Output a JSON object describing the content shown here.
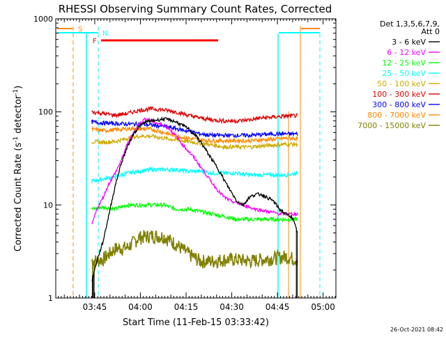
{
  "chart_data": {
    "type": "line",
    "title": "RHESSI Observing Summary Count Rates, Corrected",
    "xlabel": "Start Time (11-Feb-15 03:33:42)",
    "ylabel_main": "Corrected Count Rate (s",
    "ylabel_sup1": "-1",
    "ylabel_mid": " detector",
    "ylabel_sup2": "-1",
    "ylabel_end": ")",
    "ylim": [
      1,
      1000
    ],
    "yscale": "log",
    "yticks": [
      1,
      10,
      100,
      1000
    ],
    "ytick_labels": [
      "1",
      "10",
      "100",
      "1000"
    ],
    "x_unit": "minutes after 03:33:42",
    "xlim": [
      -1.5,
      90.5
    ],
    "xticks": [
      11.3,
      26.3,
      41.3,
      56.3,
      71.3,
      86.3
    ],
    "xtick_labels": [
      "03:45",
      "04:00",
      "04:15",
      "04:30",
      "04:45",
      "05:00"
    ],
    "legend_header": [
      "Det 1,3,5,6,7,9,",
      "Att 0"
    ],
    "legend_position": "right",
    "series": [
      {
        "name": "3 - 6 keV",
        "color": "#000000",
        "x": [
          10.3,
          12,
          14,
          16,
          18,
          20,
          22,
          24,
          26,
          28,
          30,
          32,
          34,
          36,
          38,
          40,
          42,
          44,
          46,
          48,
          50,
          52,
          54,
          56,
          58,
          60,
          62,
          64,
          66,
          68,
          70,
          72,
          74,
          76,
          78
        ],
        "y": [
          1.5,
          2.5,
          4,
          8,
          16,
          28,
          42,
          58,
          70,
          78,
          80,
          82,
          84,
          82,
          78,
          72,
          66,
          58,
          48,
          38,
          30,
          24,
          18,
          14,
          11,
          10,
          12,
          13,
          13,
          12,
          11,
          9,
          8,
          7.5,
          5
        ]
      },
      {
        "name": "6 - 12 keV",
        "color": "#ff00ff",
        "x": [
          10.3,
          12,
          14,
          16,
          18,
          20,
          22,
          24,
          26,
          28,
          30,
          32,
          34,
          36,
          38,
          40,
          42,
          44,
          46,
          48,
          50,
          52,
          54,
          56,
          58,
          60,
          62,
          64,
          66,
          68,
          70,
          72,
          74,
          76,
          78
        ],
        "y": [
          6,
          9,
          12,
          17,
          22,
          30,
          45,
          60,
          75,
          85,
          80,
          75,
          72,
          65,
          55,
          45,
          38,
          32,
          26,
          21,
          17,
          14,
          12,
          11,
          10.5,
          10,
          9.5,
          9,
          8.8,
          8.5,
          8.3,
          8,
          8,
          8,
          8
        ]
      },
      {
        "name": "12 - 25 keV",
        "color": "#00ff00",
        "x": [
          10.3,
          14,
          18,
          22,
          26,
          30,
          34,
          38,
          42,
          46,
          50,
          54,
          58,
          62,
          66,
          70,
          74,
          78
        ],
        "y": [
          9,
          9.5,
          9,
          10,
          10,
          10,
          10,
          9,
          9,
          8.5,
          8,
          7.5,
          7,
          7,
          7,
          7,
          7,
          7
        ]
      },
      {
        "name": "25 - 50 keV",
        "color": "#00ffff",
        "x": [
          10.3,
          14,
          18,
          22,
          26,
          30,
          34,
          38,
          42,
          46,
          50,
          54,
          58,
          62,
          66,
          70,
          74,
          78
        ],
        "y": [
          18,
          19,
          20,
          22,
          23,
          24,
          24,
          24,
          23,
          23,
          22,
          22,
          22,
          21,
          21,
          21,
          21,
          22
        ]
      },
      {
        "name": "50 - 100 keV",
        "color": "#ccaa00",
        "x": [
          10.3,
          14,
          18,
          22,
          26,
          30,
          34,
          38,
          42,
          46,
          50,
          54,
          58,
          62,
          66,
          70,
          74,
          78
        ],
        "y": [
          48,
          47,
          48,
          52,
          55,
          55,
          52,
          50,
          48,
          46,
          44,
          42,
          42,
          42,
          43,
          44,
          45,
          45
        ]
      },
      {
        "name": "100 - 300 keV",
        "color": "#dd0000",
        "x": [
          10.3,
          14,
          18,
          22,
          26,
          30,
          34,
          38,
          42,
          46,
          50,
          54,
          58,
          62,
          66,
          70,
          74,
          78
        ],
        "y": [
          100,
          96,
          92,
          96,
          104,
          108,
          105,
          100,
          92,
          86,
          82,
          80,
          80,
          82,
          86,
          88,
          90,
          91
        ]
      },
      {
        "name": "300 - 800 keV",
        "color": "#0000ff",
        "x": [
          10.3,
          14,
          18,
          22,
          26,
          30,
          34,
          38,
          42,
          46,
          50,
          54,
          58,
          62,
          66,
          70,
          74,
          78
        ],
        "y": [
          78,
          76,
          75,
          74,
          74,
          72,
          70,
          66,
          62,
          58,
          56,
          56,
          56,
          56,
          57,
          58,
          58,
          58
        ]
      },
      {
        "name": "800 - 7000 keV",
        "color": "#ff8800",
        "x": [
          10.3,
          14,
          18,
          22,
          26,
          30,
          34,
          38,
          42,
          46,
          50,
          54,
          58,
          62,
          66,
          70,
          74,
          78
        ],
        "y": [
          65,
          63,
          64,
          66,
          66,
          65,
          60,
          55,
          52,
          50,
          49,
          49,
          49,
          49,
          50,
          51,
          52,
          52
        ]
      },
      {
        "name": "7000 - 15000 keV",
        "color": "#808000",
        "x": [
          10.3,
          14,
          18,
          22,
          26,
          30,
          34,
          38,
          42,
          46,
          50,
          54,
          58,
          62,
          66,
          70,
          74,
          78
        ],
        "y": [
          2.5,
          2.6,
          3.4,
          3.5,
          4.5,
          4.7,
          4.6,
          3.8,
          3.0,
          2.5,
          2.5,
          2.6,
          2.6,
          2.5,
          2.6,
          2.7,
          2.8,
          2.6
        ]
      }
    ],
    "annotations": [
      {
        "label": "S",
        "color": "#ff8800"
      },
      {
        "label": "N",
        "color": "#00ffff"
      },
      {
        "label": "F",
        "color": "#ff0000"
      }
    ],
    "footer_date": "26-Oct-2021 08:42"
  }
}
